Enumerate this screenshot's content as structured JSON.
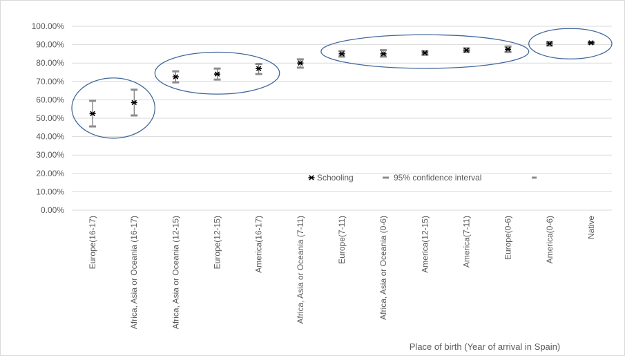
{
  "chart_data": {
    "type": "scatter",
    "title": "",
    "xlabel": "Place of birth (Year of arrival in Spain)",
    "ylabel": "",
    "ylim": [
      0,
      100
    ],
    "y_ticks": [
      "0.00%",
      "10.00%",
      "20.00%",
      "30.00%",
      "40.00%",
      "50.00%",
      "60.00%",
      "70.00%",
      "80.00%",
      "90.00%",
      "100.00%"
    ],
    "grid": true,
    "legend_position": "inside-lower-right",
    "categories": [
      "Europe(16-17)",
      "Africa, Asia or Oceania (16-17)",
      "Africa, Asia or Oceania (12-15)",
      "Europe(12-15)",
      "America(16-17)",
      "Africa, Asia or Oceania (7-11)",
      "Europe(7-11)",
      "Africa, Asia or Oceania (0-6)",
      "America(12-15)",
      "America(7-11)",
      "Europe(0-6)",
      "America(0-6)",
      "Native"
    ],
    "series": [
      {
        "name": "Schooling",
        "values": [
          52.5,
          58.5,
          72.5,
          74,
          77,
          80,
          85,
          85,
          85.5,
          87,
          87.5,
          90.5,
          91
        ],
        "marker": "asterisk",
        "color": "#000000"
      },
      {
        "name": "95% confidence interval",
        "lower": [
          45.5,
          51.5,
          69.5,
          71,
          74,
          77.5,
          83.5,
          83.5,
          84.5,
          86,
          86,
          89.5,
          90.5
        ],
        "upper": [
          59.5,
          65.5,
          75.5,
          77,
          79.5,
          82,
          86.5,
          87,
          86.5,
          88,
          89,
          91.5,
          91.5
        ],
        "color": "#8c8c8c"
      }
    ],
    "legend": {
      "entries": [
        "Schooling",
        "95% confidence interval"
      ]
    },
    "annotations": {
      "circle_color": "#41679b",
      "groups": [
        [
          0,
          1
        ],
        [
          2,
          4
        ],
        [
          6,
          10
        ],
        [
          11,
          12
        ]
      ]
    }
  }
}
